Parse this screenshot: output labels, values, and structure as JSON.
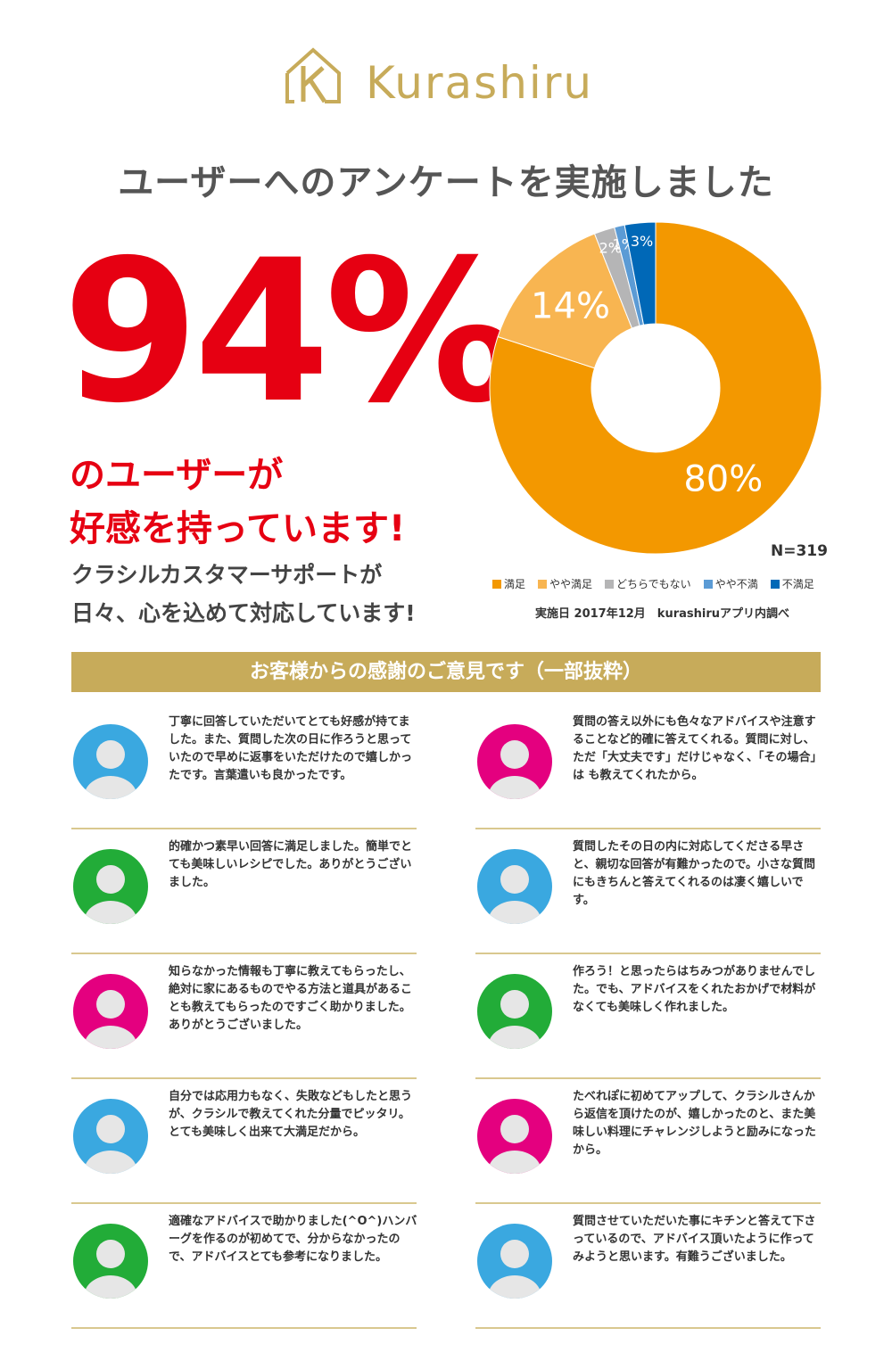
{
  "brand": {
    "name": "Kurashiru",
    "color": "#c7ab5a"
  },
  "headline": "ユーザーへのアンケートを実施しました",
  "hero": {
    "percent": "94%",
    "line1": "のユーザーが",
    "line2": "好感を持っています!",
    "sub1": "クラシルカスタマーサポートが",
    "sub2": "日々、心を込めて対応しています!"
  },
  "chart_data": {
    "type": "pie",
    "n_label": "N=319",
    "note": "実施日 2017年12月　kurashiruアプリ内調べ",
    "series": [
      {
        "name": "満足",
        "value": 80,
        "label": "80%",
        "color": "#f39800"
      },
      {
        "name": "やや満足",
        "value": 14,
        "label": "14%",
        "color": "#f8b551"
      },
      {
        "name": "どちらでもない",
        "value": 2,
        "label": "2%",
        "color": "#b5b5b6"
      },
      {
        "name": "やや不満",
        "value": 1,
        "label": "1%",
        "color": "#5b9bd5"
      },
      {
        "name": "不満足",
        "value": 3,
        "label": "3%",
        "color": "#0068b7"
      }
    ]
  },
  "banner": "お客様からの感謝のご意見です（一部抜粋）",
  "avatar_colors": {
    "blue": "#3aa8e0",
    "magenta": "#e4007f",
    "green": "#22ac38"
  },
  "comments": [
    {
      "avatar": "blue",
      "text": "丁寧に回答していただいてとても好感が持てました。また、質問した次の日に作ろうと思っていたので早めに返事をいただけたので嬉しかったです。言葉遣いも良かったです。"
    },
    {
      "avatar": "magenta",
      "text": "質問の答え以外にも色々なアドバイスや注意することなど的確に答えてくれる。質問に対し、ただ「大丈夫です」だけじゃなく、「その場合」は も教えてくれたから。"
    },
    {
      "avatar": "green",
      "text": "的確かつ素早い回答に満足しました。簡単でとても美味しいレシピでした。ありがとうございました。"
    },
    {
      "avatar": "blue",
      "text": "質問したその日の内に対応してくださる早さと、親切な回答が有難かったので。小さな質問にもきちんと答えてくれるのは凄く嬉しいです。"
    },
    {
      "avatar": "magenta",
      "text": "知らなかった情報も丁寧に教えてもらったし、絶対に家にあるものでやる方法と道具があることも教えてもらったのですごく助かりました。ありがとうございました。"
    },
    {
      "avatar": "green",
      "text": "作ろう！と思ったらはちみつがありませんでした。でも、アドバイスをくれたおかげで材料がなくても美味しく作れました。"
    },
    {
      "avatar": "blue",
      "text": "自分では応用力もなく、失敗などもしたと思うが、クラシルで教えてくれた分量でピッタリ。とても美味しく出来て大満足だから。"
    },
    {
      "avatar": "magenta",
      "text": "たべれぽに初めてアップして、クラシルさんから返信を頂けたのが、嬉しかったのと、また美味しい料理にチャレンジしようと励みになったから。"
    },
    {
      "avatar": "green",
      "text": "適確なアドバイスで助かりました(^O^)ハンバーグを作るのが初めてで、分からなかったので、アドバイスとても参考になりました。"
    },
    {
      "avatar": "blue",
      "text": "質問させていただいた事にキチンと答えて下さっているので、アドバイス頂いたように作ってみようと思います。有難うございました。"
    }
  ]
}
